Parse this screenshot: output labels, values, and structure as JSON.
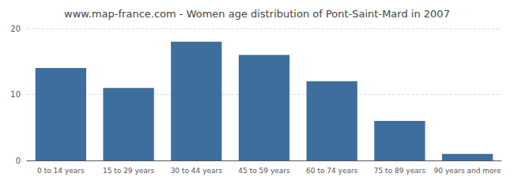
{
  "chart_data": {
    "type": "bar",
    "title": "www.map-france.com - Women age distribution of Pont-Saint-Mard in 2007",
    "categories": [
      "0 to 14 years",
      "15 to 29 years",
      "30 to 44 years",
      "45 to 59 years",
      "60 to 74 years",
      "75 to 89 years",
      "90 years and more"
    ],
    "values": [
      14,
      11,
      18,
      16,
      12,
      6,
      1
    ],
    "color": "#3d6e9e",
    "ylim": [
      0,
      20
    ],
    "yticks": [
      0,
      10,
      20
    ],
    "grid": true
  }
}
